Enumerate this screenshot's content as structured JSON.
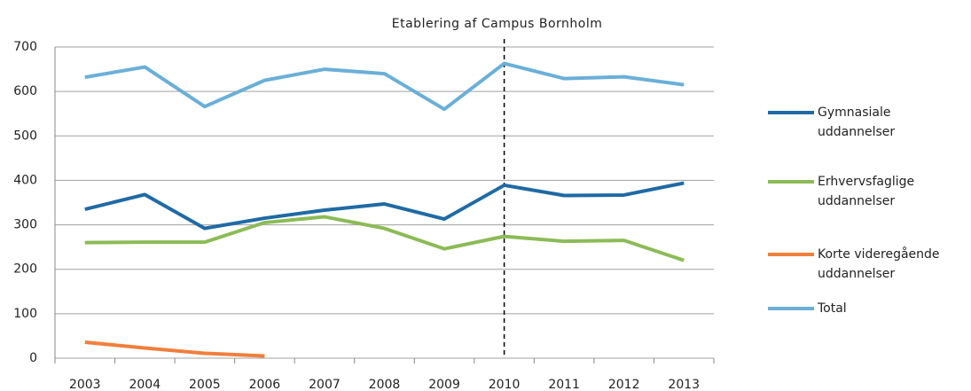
{
  "chart_data": {
    "type": "line",
    "annotation": "Etablering af Campus Bornholm",
    "annotation_at": "2010",
    "categories": [
      "2003",
      "2004",
      "2005",
      "2006",
      "2007",
      "2008",
      "2009",
      "2010",
      "2011",
      "2012",
      "2013"
    ],
    "series": [
      {
        "name": "Gymnasiale uddannelser",
        "color": "#1f6aa5",
        "values": [
          335,
          368,
          292,
          315,
          333,
          347,
          313,
          389,
          366,
          367,
          394
        ]
      },
      {
        "name": "Erhvervsfaglige uddannelser",
        "color": "#8bbb56",
        "values": [
          260,
          261,
          261,
          305,
          318,
          292,
          246,
          274,
          263,
          265,
          220
        ]
      },
      {
        "name": "Korte videregående uddannelser",
        "color": "#f07f3c",
        "values": [
          36,
          23,
          11,
          5,
          null,
          null,
          null,
          null,
          null,
          null,
          null
        ]
      },
      {
        "name": "Total",
        "color": "#6aafd8",
        "values": [
          632,
          655,
          566,
          625,
          650,
          640,
          560,
          663,
          629,
          633,
          615
        ]
      }
    ],
    "ylim": [
      0,
      700
    ],
    "yticks": [
      0,
      100,
      200,
      300,
      400,
      500,
      600,
      700
    ],
    "grid": true,
    "legend": "right"
  }
}
